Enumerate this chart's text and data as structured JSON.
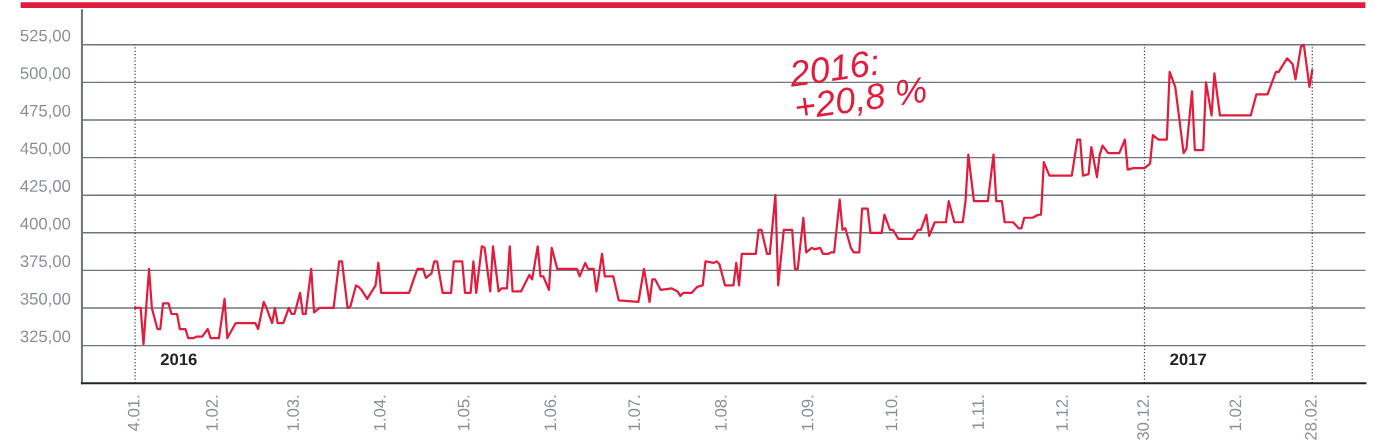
{
  "chart_data": {
    "type": "line",
    "x": [
      "2016-01-04",
      "2016-01-06",
      "2016-01-07",
      "2016-01-09",
      "2016-01-10",
      "2016-01-12",
      "2016-01-13",
      "2016-01-14",
      "2016-01-16",
      "2016-01-17",
      "2016-01-19",
      "2016-01-20",
      "2016-01-22",
      "2016-01-23",
      "2016-01-25",
      "2016-01-26",
      "2016-01-28",
      "2016-01-30",
      "2016-01-31",
      "2016-02-03",
      "2016-02-05",
      "2016-02-06",
      "2016-02-09",
      "2016-02-16",
      "2016-02-17",
      "2016-02-19",
      "2016-02-20",
      "2016-02-22",
      "2016-02-23",
      "2016-02-24",
      "2016-02-26",
      "2016-02-28",
      "2016-02-29",
      "2016-03-01",
      "2016-03-03",
      "2016-03-04",
      "2016-03-05",
      "2016-03-07",
      "2016-03-08",
      "2016-03-10",
      "2016-03-15",
      "2016-03-17",
      "2016-03-18",
      "2016-03-20",
      "2016-03-21",
      "2016-03-23",
      "2016-03-24",
      "2016-03-25",
      "2016-03-27",
      "2016-03-30",
      "2016-03-31",
      "2016-04-01",
      "2016-04-11",
      "2016-04-13",
      "2016-04-14",
      "2016-04-16",
      "2016-04-17",
      "2016-04-19",
      "2016-04-20",
      "2016-04-21",
      "2016-04-23",
      "2016-04-26",
      "2016-04-27",
      "2016-04-30",
      "2016-05-01",
      "2016-05-03",
      "2016-05-04",
      "2016-05-05",
      "2016-05-07",
      "2016-05-08",
      "2016-05-10",
      "2016-05-11",
      "2016-05-13",
      "2016-05-14",
      "2016-05-16",
      "2016-05-17",
      "2016-05-18",
      "2016-05-21",
      "2016-05-24",
      "2016-05-25",
      "2016-05-27",
      "2016-05-28",
      "2016-05-29",
      "2016-05-31",
      "2016-06-01",
      "2016-06-03",
      "2016-06-10",
      "2016-06-11",
      "2016-06-13",
      "2016-06-14",
      "2016-06-16",
      "2016-06-17",
      "2016-06-19",
      "2016-06-20",
      "2016-06-23",
      "2016-06-25",
      "2016-07-02",
      "2016-07-04",
      "2016-07-06",
      "2016-07-07",
      "2016-07-08",
      "2016-07-10",
      "2016-07-14",
      "2016-07-16",
      "2016-07-17",
      "2016-07-18",
      "2016-07-21",
      "2016-07-23",
      "2016-07-25",
      "2016-07-26",
      "2016-07-29",
      "2016-07-30",
      "2016-07-31",
      "2016-08-02",
      "2016-08-05",
      "2016-08-06",
      "2016-08-07",
      "2016-08-08",
      "2016-08-13",
      "2016-08-14",
      "2016-08-15",
      "2016-08-17",
      "2016-08-18",
      "2016-08-20",
      "2016-08-21",
      "2016-08-23",
      "2016-08-26",
      "2016-08-27",
      "2016-08-28",
      "2016-08-30",
      "2016-08-31",
      "2016-09-02",
      "2016-09-03",
      "2016-09-05",
      "2016-09-06",
      "2016-09-08",
      "2016-09-09",
      "2016-09-10",
      "2016-09-12",
      "2016-09-13",
      "2016-09-14",
      "2016-09-16",
      "2016-09-17",
      "2016-09-19",
      "2016-09-20",
      "2016-09-22",
      "2016-09-23",
      "2016-09-27",
      "2016-09-28",
      "2016-09-30",
      "2016-10-01",
      "2016-10-03",
      "2016-10-08",
      "2016-10-10",
      "2016-10-11",
      "2016-10-13",
      "2016-10-14",
      "2016-10-16",
      "2016-10-20",
      "2016-10-21",
      "2016-10-23",
      "2016-10-26",
      "2016-10-27",
      "2016-10-28",
      "2016-10-30",
      "2016-11-04",
      "2016-11-06",
      "2016-11-07",
      "2016-11-09",
      "2016-11-10",
      "2016-11-13",
      "2016-11-15",
      "2016-11-16",
      "2016-11-17",
      "2016-11-20",
      "2016-11-22",
      "2016-11-23",
      "2016-11-24",
      "2016-11-26",
      "2016-12-04",
      "2016-12-06",
      "2016-12-07",
      "2016-12-08",
      "2016-12-10",
      "2016-12-11",
      "2016-12-13",
      "2016-12-14",
      "2016-12-15",
      "2016-12-17",
      "2016-12-21",
      "2016-12-23",
      "2016-12-24",
      "2016-12-26",
      "2016-12-30",
      "2017-01-01",
      "2017-01-02",
      "2017-01-04",
      "2017-01-07",
      "2017-01-08",
      "2017-01-10",
      "2017-01-13",
      "2017-01-14",
      "2017-01-16",
      "2017-01-17",
      "2017-01-20",
      "2017-01-21",
      "2017-01-23",
      "2017-01-24",
      "2017-01-26",
      "2017-01-27",
      "2017-02-06",
      "2017-02-08",
      "2017-02-12",
      "2017-02-15",
      "2017-02-16",
      "2017-02-19",
      "2017-02-21",
      "2017-02-22",
      "2017-02-24",
      "2017-02-25",
      "2017-02-27",
      "2017-02-28"
    ],
    "series": [
      {
        "color": "#e31c3d",
        "values": [
          350,
          350,
          326,
          376,
          350,
          336,
          336,
          353,
          353,
          346,
          346,
          336,
          336,
          330,
          330,
          331,
          331,
          336,
          330,
          330,
          356,
          330,
          340,
          340,
          336,
          354,
          350,
          340,
          350,
          340,
          340,
          350,
          346,
          346,
          360,
          346,
          346,
          376,
          347,
          350,
          350,
          381,
          381,
          350,
          351,
          365,
          364,
          362,
          356,
          365,
          380,
          360,
          360,
          371,
          376,
          376,
          370,
          373,
          381,
          381,
          360,
          360,
          381,
          381,
          360,
          360,
          381,
          360,
          391,
          390,
          361,
          391,
          361,
          363,
          363,
          391,
          361,
          361,
          372,
          369,
          391,
          371,
          371,
          362,
          390,
          376,
          376,
          371,
          380,
          376,
          376,
          361,
          386,
          371,
          371,
          355,
          354,
          376,
          354,
          369,
          369,
          362,
          363,
          361,
          358,
          360,
          360,
          364,
          365,
          381,
          380,
          381,
          379,
          365,
          365,
          380,
          365,
          386,
          386,
          402,
          402,
          386,
          386,
          425,
          365,
          402,
          402,
          376,
          376,
          410,
          387,
          390,
          389,
          390,
          386,
          386,
          387,
          387,
          422,
          402,
          403,
          390,
          387,
          387,
          416,
          416,
          400,
          400,
          412,
          402,
          402,
          396,
          396,
          402,
          402,
          412,
          398,
          407,
          407,
          421,
          407,
          407,
          421,
          452,
          421,
          421,
          452,
          421,
          421,
          407,
          407,
          403,
          403,
          410,
          410,
          412,
          412,
          447,
          438,
          438,
          462,
          462,
          438,
          439,
          457,
          437,
          452,
          458,
          453,
          453,
          462,
          442,
          443,
          443,
          446,
          465,
          462,
          462,
          507,
          497,
          453,
          456,
          494,
          455,
          455,
          500,
          478,
          506,
          478,
          478,
          478,
          492,
          492,
          507,
          507,
          516,
          512,
          502,
          524,
          525,
          497,
          508
        ]
      }
    ],
    "ylim": [
      300,
      548
    ],
    "yticks": [
      {
        "value": 325,
        "label": "325,00"
      },
      {
        "value": 350,
        "label": "350,00"
      },
      {
        "value": 375,
        "label": "375,00"
      },
      {
        "value": 400,
        "label": "400,00"
      },
      {
        "value": 425,
        "label": "425,00"
      },
      {
        "value": 450,
        "label": "450,00"
      },
      {
        "value": 475,
        "label": "475,00"
      },
      {
        "value": 500,
        "label": "500,00"
      },
      {
        "value": 525,
        "label": "525,00"
      }
    ],
    "xlim": [
      "2015-12-16",
      "2017-03-19"
    ],
    "xticks": [
      {
        "value": "2016-01-04",
        "label": "4.01."
      },
      {
        "value": "2016-02-01",
        "label": "1.02."
      },
      {
        "value": "2016-03-01",
        "label": "1.03."
      },
      {
        "value": "2016-04-01",
        "label": "1.04."
      },
      {
        "value": "2016-05-01",
        "label": "1.05."
      },
      {
        "value": "2016-06-01",
        "label": "1.06."
      },
      {
        "value": "2016-07-01",
        "label": "1.07."
      },
      {
        "value": "2016-08-01",
        "label": "1.08."
      },
      {
        "value": "2016-09-01",
        "label": "1.09."
      },
      {
        "value": "2016-10-01",
        "label": "1.10."
      },
      {
        "value": "2016-11-01",
        "label": "1.11."
      },
      {
        "value": "2016-12-01",
        "label": "1.12."
      },
      {
        "value": "2016-12-30",
        "label": "30.12."
      },
      {
        "value": "2017-02-01",
        "label": "1.02."
      },
      {
        "value": "2017-02-28",
        "label": "28.02."
      }
    ],
    "ref_lines": [
      {
        "axis": "x",
        "value": "2016-01-04",
        "label": "2016",
        "color": "#444444",
        "line_style": "dotted"
      },
      {
        "axis": "x",
        "value": "2016-12-30",
        "label": "2017",
        "color": "#444444",
        "line_style": "dotted"
      },
      {
        "axis": "x",
        "value": "2017-02-28",
        "color": "#444444",
        "line_style": "dotted"
      }
    ],
    "annotations": [
      "2016:\n+20,8 %"
    ],
    "grid": "y",
    "line_style": "solid",
    "marker": "none",
    "legend": false
  }
}
